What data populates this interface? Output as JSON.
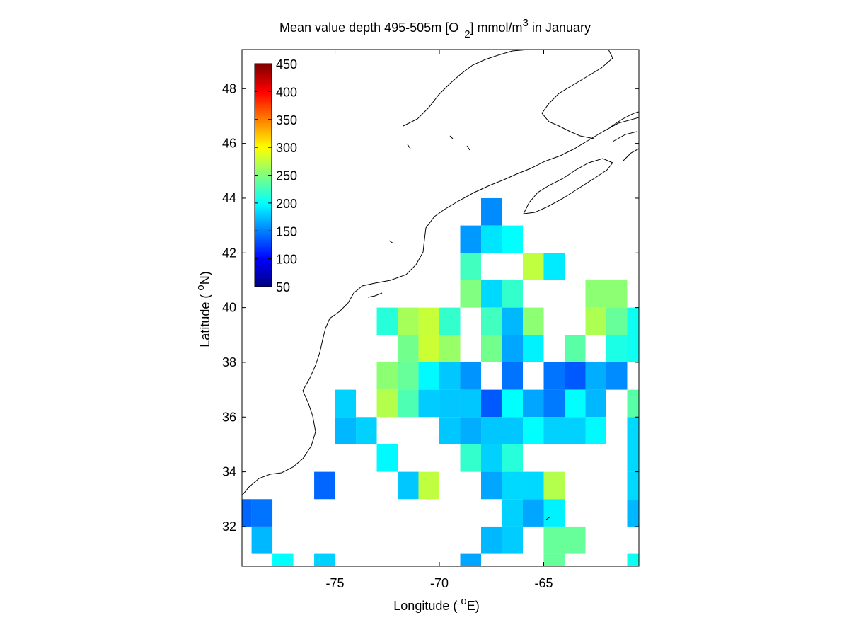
{
  "chart_data": {
    "type": "gridmap",
    "title": [
      "Mean value depth 495-505m [O",
      "2",
      "] mmol/m",
      "3",
      " in January"
    ],
    "xlabel": [
      "Longitude ( ",
      "o",
      "E)"
    ],
    "ylabel": [
      "Latitude ( ",
      "o",
      "N)"
    ],
    "xlim": [
      -79.46,
      -60.44
    ],
    "ylim": [
      30.55,
      49.43
    ],
    "xticks": [
      -75,
      -70,
      -65
    ],
    "yticks": [
      32,
      34,
      36,
      38,
      40,
      42,
      44,
      46,
      48
    ],
    "colormap": "jet",
    "clim": [
      50,
      450
    ],
    "cticks": [
      50,
      100,
      150,
      200,
      250,
      300,
      350,
      400,
      450
    ],
    "cell_size": [
      1,
      1
    ],
    "lon": [
      -67.5,
      -68.5,
      -67.5,
      -66.5,
      -68.5,
      -65.5,
      -64.5,
      -68.5,
      -67.5,
      -66.5,
      -62.5,
      -61.5,
      -72.5,
      -71.5,
      -70.5,
      -69.5,
      -67.5,
      -66.5,
      -65.5,
      -62.5,
      -61.5,
      -60.5,
      -71.5,
      -70.5,
      -69.5,
      -67.5,
      -66.5,
      -65.5,
      -63.5,
      -61.5,
      -60.5,
      -72.5,
      -71.5,
      -70.5,
      -69.5,
      -68.5,
      -66.5,
      -64.5,
      -63.5,
      -62.5,
      -61.5,
      -74.5,
      -72.5,
      -71.5,
      -70.5,
      -69.5,
      -68.5,
      -67.5,
      -66.5,
      -65.5,
      -64.5,
      -63.5,
      -62.5,
      -60.5,
      -74.5,
      -73.5,
      -69.5,
      -68.5,
      -67.5,
      -66.5,
      -65.5,
      -64.5,
      -63.5,
      -62.5,
      -60.5,
      -72.5,
      -68.5,
      -67.5,
      -66.5,
      -60.5,
      -75.5,
      -71.5,
      -70.5,
      -67.5,
      -66.5,
      -65.5,
      -64.5,
      -60.5,
      -79.5,
      -78.5,
      -66.5,
      -65.5,
      -64.5,
      -60.5,
      -78.5,
      -67.5,
      -66.5,
      -64.5,
      -63.5,
      -77.5,
      -75.5,
      -68.5,
      -64.5,
      -60.5
    ],
    "lat": [
      43.5,
      42.5,
      42.5,
      42.5,
      41.5,
      41.5,
      41.5,
      40.5,
      40.5,
      40.5,
      40.5,
      40.5,
      39.5,
      39.5,
      39.5,
      39.5,
      39.5,
      39.5,
      39.5,
      39.5,
      39.5,
      39.5,
      38.5,
      38.5,
      38.5,
      38.5,
      38.5,
      38.5,
      38.5,
      38.5,
      38.5,
      37.5,
      37.5,
      37.5,
      37.5,
      37.5,
      37.5,
      37.5,
      37.5,
      37.5,
      37.5,
      36.5,
      36.5,
      36.5,
      36.5,
      36.5,
      36.5,
      36.5,
      36.5,
      36.5,
      36.5,
      36.5,
      36.5,
      36.5,
      35.5,
      35.5,
      35.5,
      35.5,
      35.5,
      35.5,
      35.5,
      35.5,
      35.5,
      35.5,
      35.5,
      34.5,
      34.5,
      34.5,
      34.5,
      34.5,
      33.5,
      33.5,
      33.5,
      33.5,
      33.5,
      33.5,
      33.5,
      33.5,
      32.5,
      32.5,
      32.5,
      32.5,
      32.5,
      32.5,
      31.5,
      31.5,
      31.5,
      31.5,
      31.5,
      30.5,
      30.5,
      30.5,
      30.5,
      30.5
    ],
    "values": [
      155,
      160,
      190,
      200,
      225,
      275,
      192,
      250,
      185,
      220,
      255,
      255,
      215,
      265,
      278,
      220,
      225,
      172,
      255,
      268,
      240,
      205,
      245,
      280,
      260,
      245,
      165,
      195,
      235,
      210,
      205,
      255,
      240,
      198,
      178,
      158,
      145,
      145,
      135,
      168,
      155,
      182,
      270,
      230,
      180,
      178,
      178,
      135,
      200,
      165,
      148,
      200,
      172,
      235,
      172,
      182,
      178,
      168,
      178,
      178,
      200,
      182,
      182,
      198,
      185,
      198,
      220,
      182,
      215,
      185,
      140,
      178,
      275,
      165,
      185,
      185,
      270,
      185,
      140,
      145,
      182,
      165,
      195,
      172,
      172,
      172,
      180,
      240,
      240,
      200,
      182,
      165,
      240,
      205
    ]
  }
}
